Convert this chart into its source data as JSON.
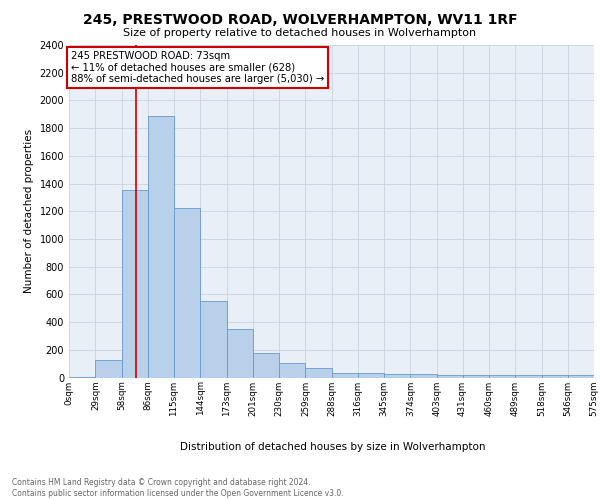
{
  "title": "245, PRESTWOOD ROAD, WOLVERHAMPTON, WV11 1RF",
  "subtitle": "Size of property relative to detached houses in Wolverhampton",
  "xlabel": "Distribution of detached houses by size in Wolverhampton",
  "ylabel": "Number of detached properties",
  "bin_edges": [
    0,
    29,
    58,
    86,
    115,
    144,
    173,
    201,
    230,
    259,
    288,
    316,
    345,
    374,
    403,
    431,
    460,
    489,
    518,
    546,
    575
  ],
  "bin_labels": [
    "0sqm",
    "29sqm",
    "58sqm",
    "86sqm",
    "115sqm",
    "144sqm",
    "173sqm",
    "201sqm",
    "230sqm",
    "259sqm",
    "288sqm",
    "316sqm",
    "345sqm",
    "374sqm",
    "403sqm",
    "431sqm",
    "460sqm",
    "489sqm",
    "518sqm",
    "546sqm",
    "575sqm"
  ],
  "bar_heights": [
    3,
    125,
    1350,
    1890,
    1220,
    550,
    350,
    175,
    105,
    65,
    30,
    30,
    25,
    25,
    20,
    20,
    20,
    20,
    20,
    20
  ],
  "bar_color": "#b8d0ea",
  "bar_edge_color": "#6699cc",
  "property_line_x": 73,
  "annotation_title": "245 PRESTWOOD ROAD: 73sqm",
  "annotation_line1": "← 11% of detached houses are smaller (628)",
  "annotation_line2": "88% of semi-detached houses are larger (5,030) →",
  "red_line_color": "#cc0000",
  "annotation_box_color": "#ffffff",
  "annotation_box_edge_color": "#cc0000",
  "ylim": [
    0,
    2400
  ],
  "yticks": [
    0,
    200,
    400,
    600,
    800,
    1000,
    1200,
    1400,
    1600,
    1800,
    2000,
    2200,
    2400
  ],
  "grid_color": "#c8d4e0",
  "bg_color": "#e8eff7",
  "footer_line1": "Contains HM Land Registry data © Crown copyright and database right 2024.",
  "footer_line2": "Contains public sector information licensed under the Open Government Licence v3.0."
}
